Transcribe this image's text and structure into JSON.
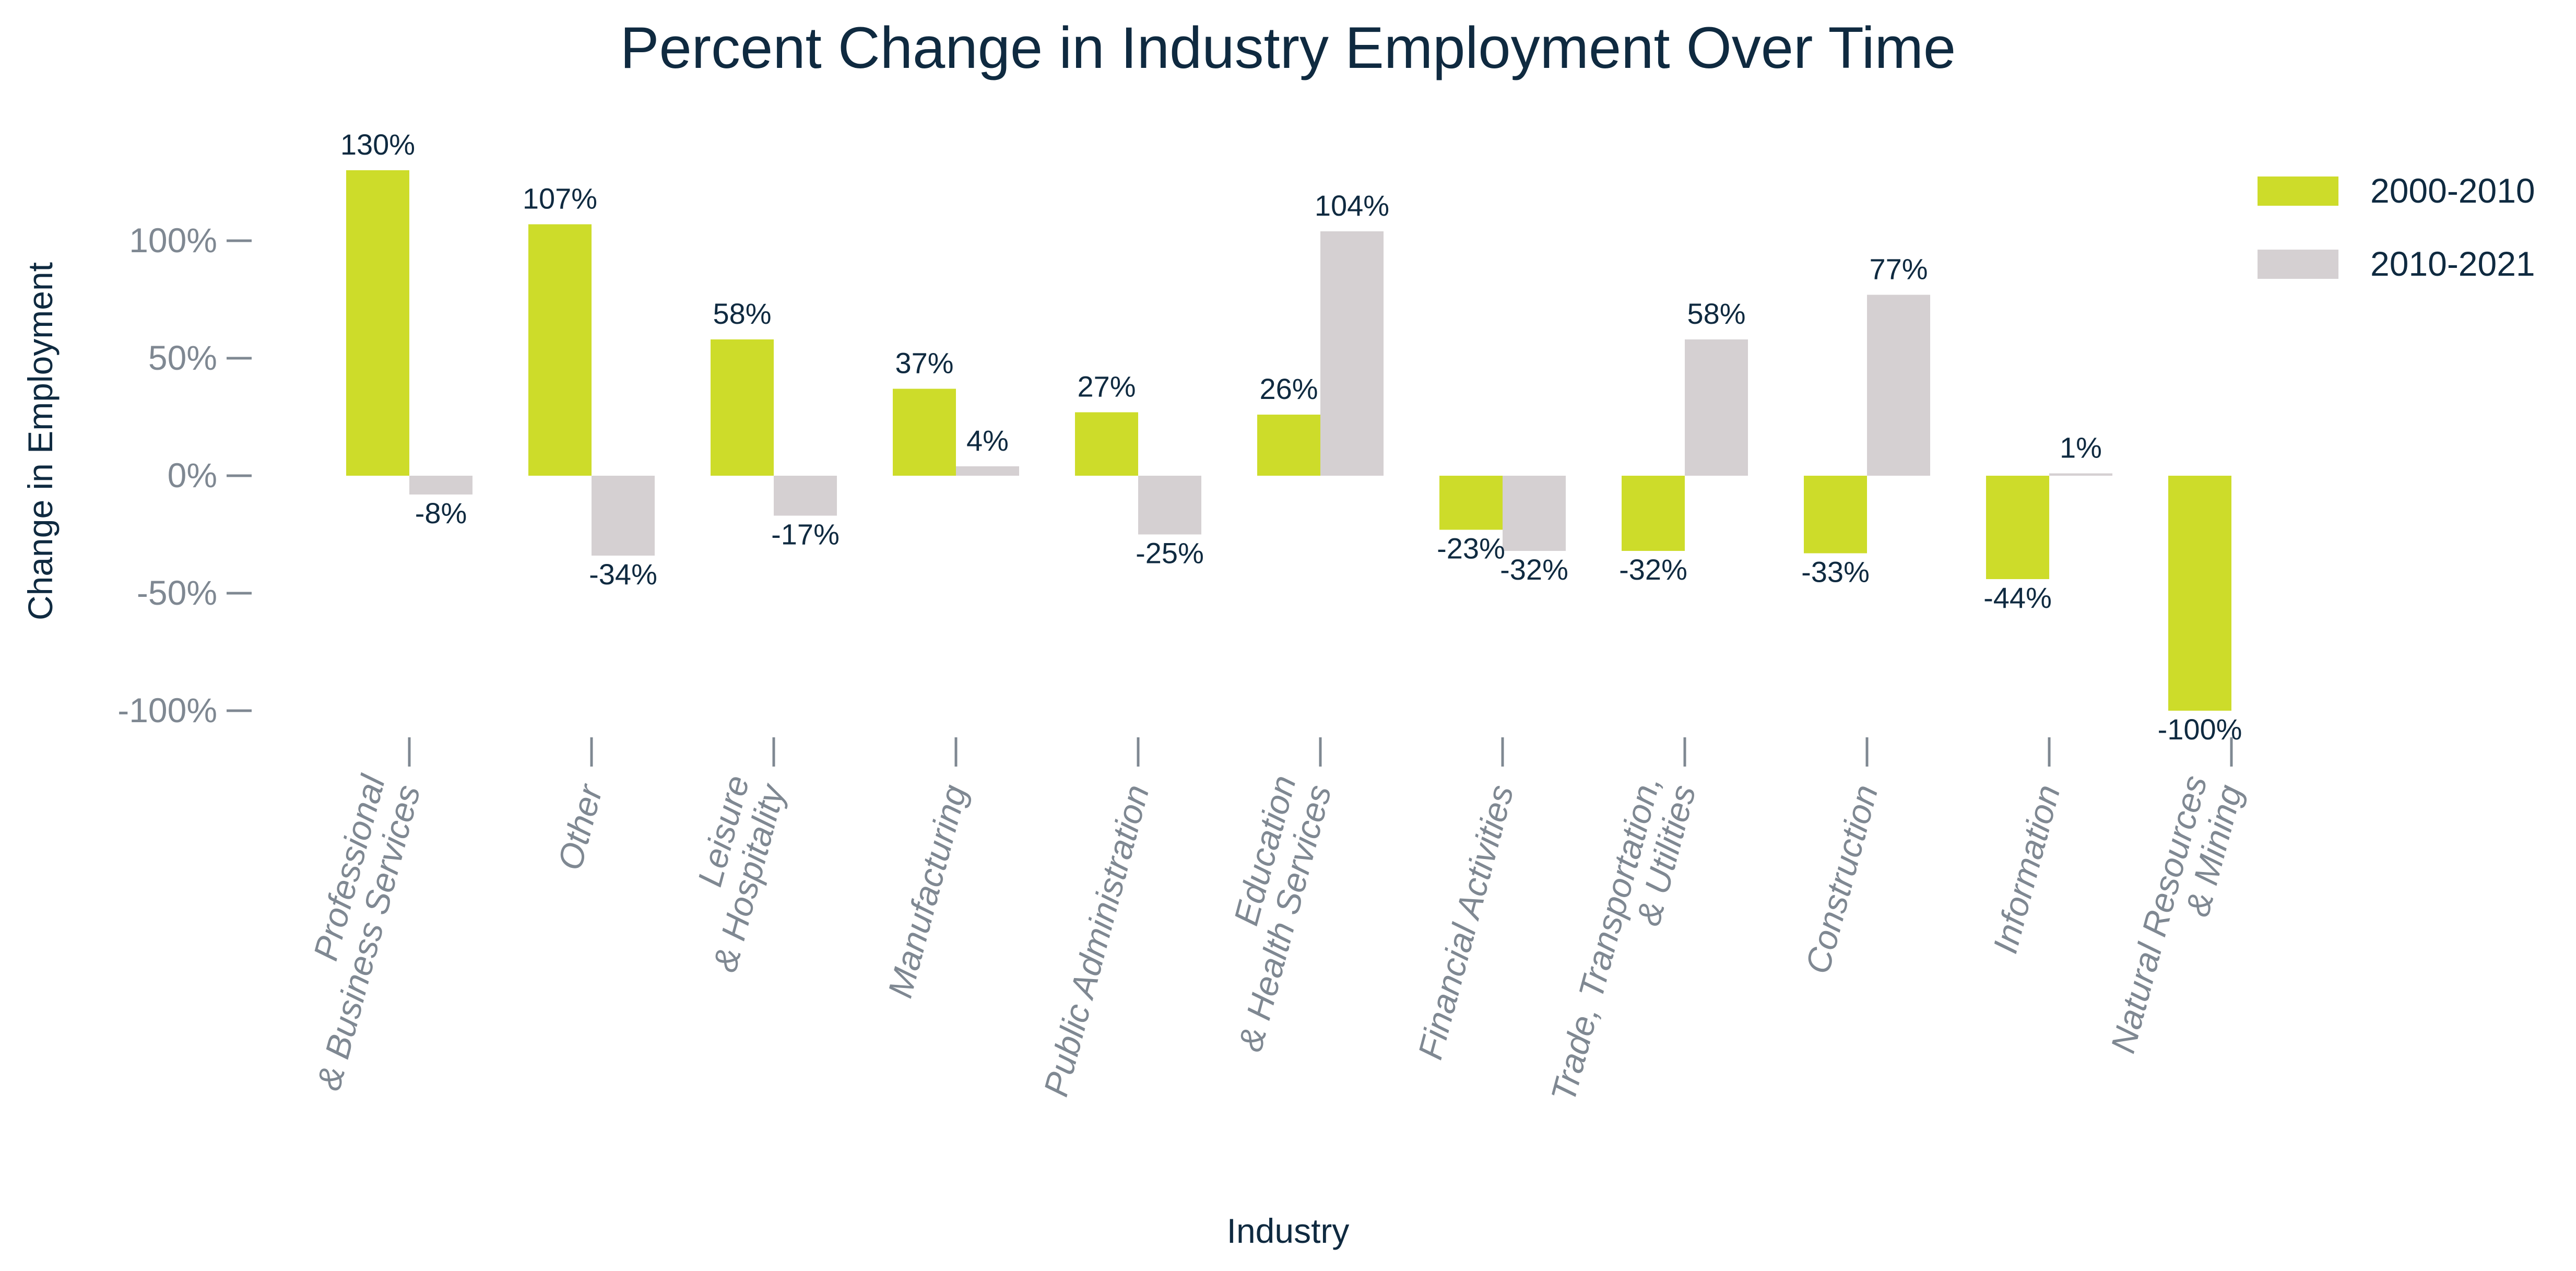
{
  "chart_data": {
    "type": "bar",
    "title": "Percent Change in Industry Employment Over Time",
    "xlabel": "Industry",
    "ylabel": "Change in Employment",
    "ylim": [
      -100,
      130
    ],
    "yticks": [
      {
        "value": 100,
        "label": "100%"
      },
      {
        "value": 50,
        "label": "50%"
      },
      {
        "value": 0,
        "label": "0%"
      },
      {
        "value": -50,
        "label": "-50%"
      },
      {
        "value": -100,
        "label": "-100%"
      }
    ],
    "grid": false,
    "legend_position": "top-right",
    "categories": [
      [
        "Professional",
        "& Business Services"
      ],
      [
        "Other"
      ],
      [
        "Leisure",
        "& Hospitality"
      ],
      [
        "Manufacturing"
      ],
      [
        "Public Administration"
      ],
      [
        "Education",
        "& Health Services"
      ],
      [
        "Financial Activities"
      ],
      [
        "Trade, Transportation,",
        "& Utilities"
      ],
      [
        "Construction"
      ],
      [
        "Information"
      ],
      [
        "Natural Resources",
        "& Mining"
      ]
    ],
    "series": [
      {
        "name": "2000-2010",
        "color": "#cddc2a",
        "values": [
          130,
          107,
          58,
          37,
          27,
          26,
          -23,
          -32,
          -33,
          -44,
          -100
        ],
        "labels": [
          "130%",
          "107%",
          "58%",
          "37%",
          "27%",
          "26%",
          "-23%",
          "-32%",
          "-33%",
          "-44%",
          "-100%"
        ]
      },
      {
        "name": "2010-2021",
        "color": "#d5d0d2",
        "values": [
          -8,
          -34,
          -17,
          4,
          -25,
          104,
          -32,
          58,
          77,
          1,
          null
        ],
        "labels": [
          "-8%",
          "-34%",
          "-17%",
          "4%",
          "-25%",
          "104%",
          "-32%",
          "58%",
          "77%",
          "1%",
          null
        ]
      }
    ]
  }
}
